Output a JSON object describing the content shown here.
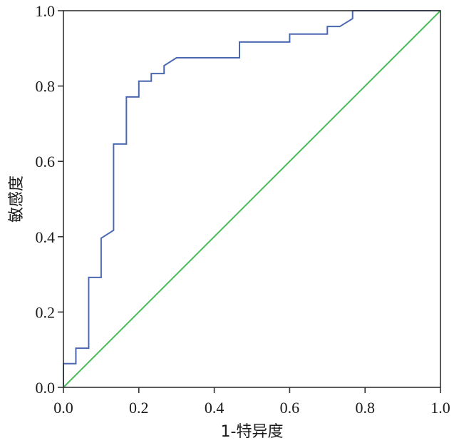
{
  "chart_data": {
    "type": "line",
    "title": "",
    "xlabel": "1-特异度",
    "ylabel": "敏感度",
    "xlim": [
      0.0,
      1.0
    ],
    "ylim": [
      0.0,
      1.0
    ],
    "x_ticks": [
      "0.0",
      "0.2",
      "0.4",
      "0.6",
      "0.8",
      "1.0"
    ],
    "y_ticks": [
      "0.0",
      "0.2",
      "0.4",
      "0.6",
      "0.8",
      "1.0"
    ],
    "grid": false,
    "legend": "none",
    "series": [
      {
        "color": "#4a67b0",
        "step": true,
        "x": [
          0.0,
          0.0,
          0.033,
          0.033,
          0.067,
          0.067,
          0.1,
          0.1,
          0.133,
          0.133,
          0.167,
          0.167,
          0.2,
          0.2,
          0.233,
          0.233,
          0.267,
          0.267,
          0.3,
          0.467,
          0.467,
          0.6,
          0.6,
          0.7,
          0.7,
          0.733,
          0.767,
          0.767,
          1.0
        ],
        "y": [
          0.0,
          0.063,
          0.063,
          0.104,
          0.104,
          0.292,
          0.292,
          0.396,
          0.417,
          0.646,
          0.646,
          0.771,
          0.771,
          0.813,
          0.813,
          0.833,
          0.833,
          0.854,
          0.875,
          0.875,
          0.917,
          0.917,
          0.938,
          0.938,
          0.958,
          0.958,
          0.979,
          1.0,
          1.0
        ]
      },
      {
        "color": "#4cbb5c",
        "x": [
          0.0,
          1.0
        ],
        "y": [
          0.0,
          1.0
        ]
      }
    ]
  }
}
